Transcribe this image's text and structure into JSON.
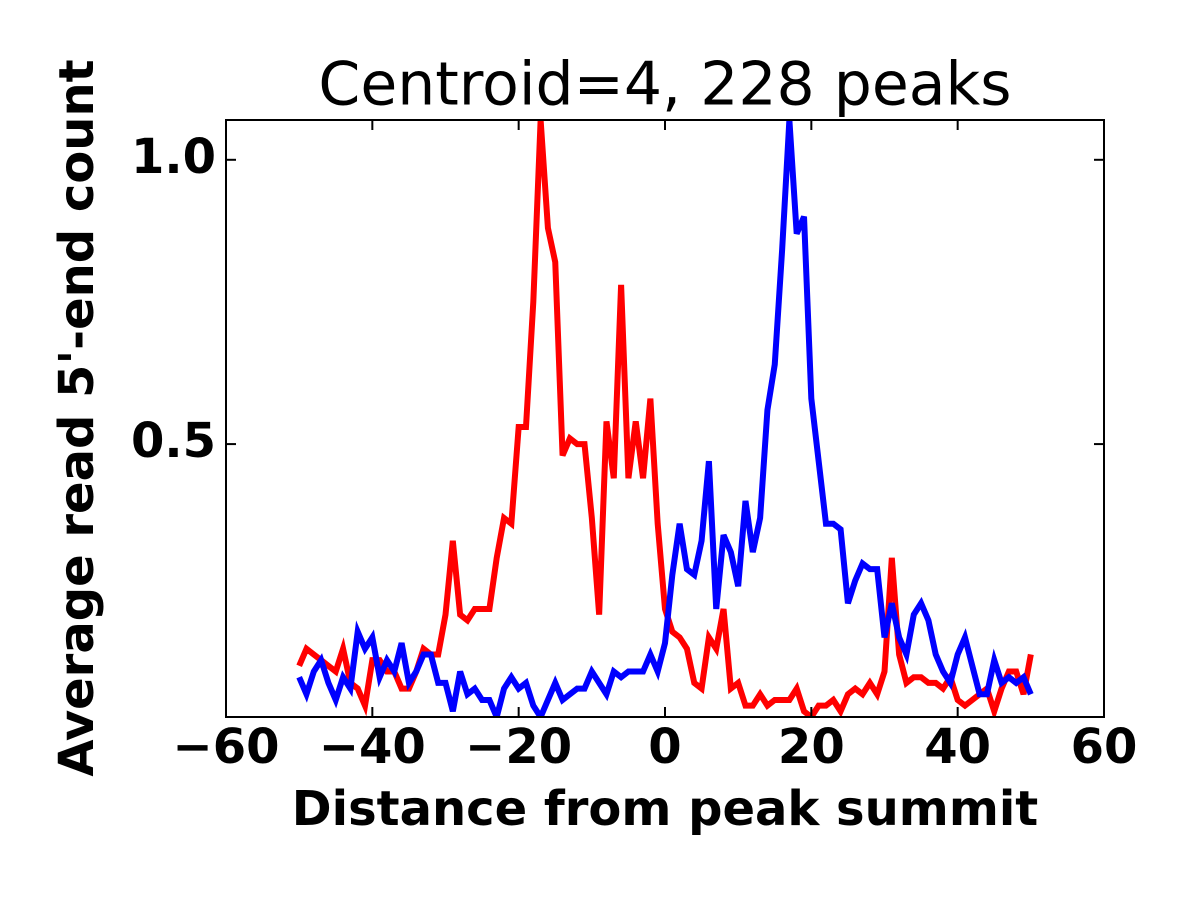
{
  "chart_data": {
    "type": "line",
    "title": "Centroid=4, 228 peaks",
    "xlabel": "Distance from peak summit",
    "ylabel": "Average read 5'-end count",
    "x": [
      -50,
      -49,
      -48,
      -47,
      -46,
      -45,
      -44,
      -43,
      -42,
      -41,
      -40,
      -39,
      -38,
      -37,
      -36,
      -35,
      -34,
      -33,
      -32,
      -31,
      -30,
      -29,
      -28,
      -27,
      -26,
      -25,
      -24,
      -23,
      -22,
      -21,
      -20,
      -19,
      -18,
      -17,
      -16,
      -15,
      -14,
      -13,
      -12,
      -11,
      -10,
      -9,
      -8,
      -7,
      -6,
      -5,
      -4,
      -3,
      -2,
      -1,
      0,
      1,
      2,
      3,
      4,
      5,
      6,
      7,
      8,
      9,
      10,
      11,
      12,
      13,
      14,
      15,
      16,
      17,
      18,
      19,
      20,
      21,
      22,
      23,
      24,
      25,
      26,
      27,
      28,
      29,
      30,
      31,
      32,
      33,
      34,
      35,
      36,
      37,
      38,
      39,
      40,
      41,
      42,
      43,
      44,
      45,
      46,
      47,
      48,
      49,
      50
    ],
    "series": [
      {
        "color": "#ff0000",
        "values": [
          0.11,
          0.14,
          0.13,
          0.12,
          0.11,
          0.1,
          0.14,
          0.08,
          0.07,
          0.04,
          0.12,
          0.12,
          0.1,
          0.1,
          0.07,
          0.07,
          0.1,
          0.14,
          0.13,
          0.13,
          0.2,
          0.33,
          0.2,
          0.19,
          0.21,
          0.21,
          0.21,
          0.3,
          0.37,
          0.36,
          0.53,
          0.53,
          0.75,
          1.07,
          0.88,
          0.82,
          0.48,
          0.51,
          0.5,
          0.5,
          0.37,
          0.2,
          0.54,
          0.44,
          0.78,
          0.44,
          0.54,
          0.44,
          0.58,
          0.36,
          0.21,
          0.17,
          0.16,
          0.14,
          0.08,
          0.07,
          0.16,
          0.14,
          0.21,
          0.07,
          0.08,
          0.04,
          0.04,
          0.06,
          0.04,
          0.05,
          0.05,
          0.05,
          0.07,
          0.03,
          0.02,
          0.04,
          0.04,
          0.05,
          0.03,
          0.06,
          0.07,
          0.06,
          0.08,
          0.06,
          0.1,
          0.3,
          0.13,
          0.08,
          0.09,
          0.09,
          0.08,
          0.08,
          0.07,
          0.09,
          0.05,
          0.04,
          0.05,
          0.06,
          0.07,
          0.03,
          0.07,
          0.1,
          0.1,
          0.06,
          0.13
        ]
      },
      {
        "color": "#0000ff",
        "values": [
          0.09,
          0.06,
          0.1,
          0.12,
          0.08,
          0.05,
          0.09,
          0.07,
          0.17,
          0.14,
          0.16,
          0.09,
          0.12,
          0.1,
          0.15,
          0.08,
          0.1,
          0.13,
          0.13,
          0.08,
          0.08,
          0.03,
          0.1,
          0.06,
          0.07,
          0.05,
          0.05,
          0.02,
          0.07,
          0.09,
          0.07,
          0.08,
          0.04,
          0.02,
          0.05,
          0.08,
          0.05,
          0.06,
          0.07,
          0.07,
          0.1,
          0.08,
          0.06,
          0.1,
          0.09,
          0.1,
          0.1,
          0.1,
          0.13,
          0.1,
          0.15,
          0.27,
          0.36,
          0.28,
          0.27,
          0.33,
          0.47,
          0.21,
          0.34,
          0.31,
          0.25,
          0.4,
          0.31,
          0.37,
          0.56,
          0.64,
          0.84,
          1.07,
          0.87,
          0.9,
          0.58,
          0.47,
          0.36,
          0.36,
          0.35,
          0.22,
          0.26,
          0.29,
          0.28,
          0.28,
          0.16,
          0.22,
          0.16,
          0.13,
          0.2,
          0.22,
          0.19,
          0.13,
          0.1,
          0.08,
          0.13,
          0.16,
          0.11,
          0.06,
          0.06,
          0.12,
          0.08,
          0.09,
          0.08,
          0.09,
          0.06
        ]
      }
    ],
    "xlim": [
      -60,
      60
    ],
    "xticks": [
      {
        "value": -60,
        "label": "−60"
      },
      {
        "value": -40,
        "label": "−40"
      },
      {
        "value": -20,
        "label": "−20"
      },
      0,
      20,
      40,
      60
    ],
    "ylim": [
      0.02,
      1.07
    ],
    "yticks": [
      0.5,
      {
        "value": 1,
        "label": "1.0"
      }
    ]
  }
}
